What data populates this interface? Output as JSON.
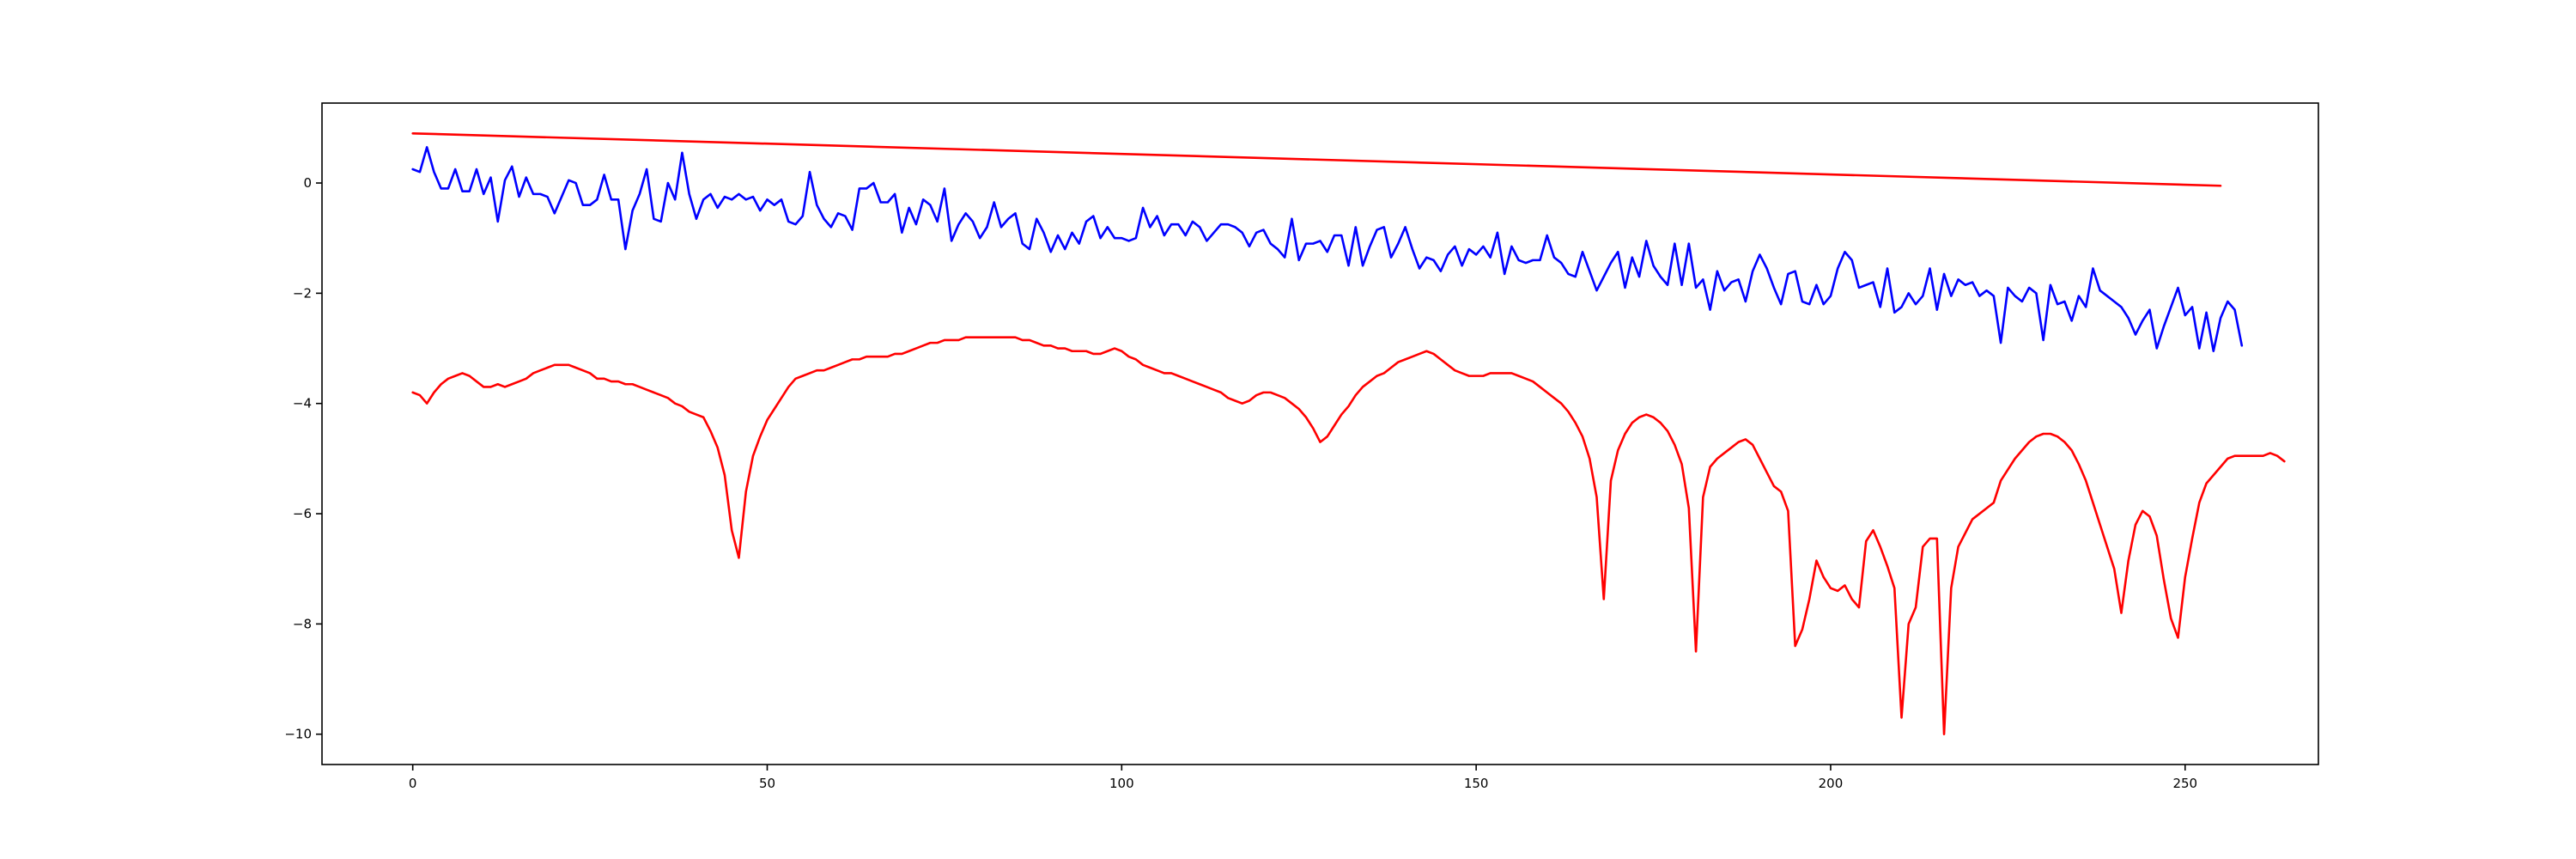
{
  "chart_data": {
    "type": "line",
    "title": "",
    "xlabel": "",
    "ylabel": "",
    "xlim": [
      -12.8,
      268.8
    ],
    "ylim": [
      -10.55,
      1.45
    ],
    "grid": false,
    "legend": "none",
    "xticks": [
      0,
      50,
      100,
      150,
      200,
      250
    ],
    "yticks": [
      0,
      -2,
      -4,
      -6,
      -8,
      -10
    ],
    "xtick_labels": [
      "0",
      "50",
      "100",
      "150",
      "200",
      "250"
    ],
    "ytick_labels": [
      "0",
      "−2",
      "−4",
      "−6",
      "−8",
      "−10"
    ],
    "series": [
      {
        "color": "#0000ff",
        "x_start": 0,
        "x_step": 1,
        "values": [
          0.25,
          0.2,
          0.65,
          0.2,
          -0.1,
          -0.1,
          0.25,
          -0.15,
          -0.15,
          0.25,
          -0.2,
          0.1,
          -0.7,
          0.05,
          0.3,
          -0.25,
          0.1,
          -0.2,
          -0.2,
          -0.25,
          -0.55,
          -0.25,
          0.05,
          0.0,
          -0.4,
          -0.4,
          -0.3,
          0.15,
          -0.3,
          -0.3,
          -1.2,
          -0.5,
          -0.2,
          0.25,
          -0.65,
          -0.7,
          0.0,
          -0.3,
          0.55,
          -0.2,
          -0.65,
          -0.3,
          -0.2,
          -0.45,
          -0.25,
          -0.3,
          -0.2,
          -0.3,
          -0.25,
          -0.5,
          -0.3,
          -0.4,
          -0.3,
          -0.7,
          -0.75,
          -0.6,
          0.2,
          -0.4,
          -0.65,
          -0.8,
          -0.55,
          -0.6,
          -0.85,
          -0.1,
          -0.1,
          0.0,
          -0.35,
          -0.35,
          -0.2,
          -0.9,
          -0.45,
          -0.75,
          -0.3,
          -0.4,
          -0.7,
          -0.1,
          -1.05,
          -0.75,
          -0.55,
          -0.7,
          -1.0,
          -0.8,
          -0.35,
          -0.8,
          -0.65,
          -0.55,
          -1.1,
          -1.2,
          -0.65,
          -0.9,
          -1.25,
          -0.95,
          -1.2,
          -0.9,
          -1.1,
          -0.7,
          -0.6,
          -1.0,
          -0.8,
          -1.0,
          -1.0,
          -1.05,
          -1.0,
          -0.45,
          -0.8,
          -0.6,
          -0.95,
          -0.75,
          -0.75,
          -0.95,
          -0.7,
          -0.8,
          -1.05,
          -0.9,
          -0.75,
          -0.75,
          -0.8,
          -0.9,
          -1.15,
          -0.9,
          -0.85,
          -1.1,
          -1.2,
          -1.35,
          -0.65,
          -1.4,
          -1.1,
          -1.1,
          -1.05,
          -1.25,
          -0.95,
          -0.95,
          -1.5,
          -0.8,
          -1.5,
          -1.15,
          -0.85,
          -0.8,
          -1.35,
          -1.1,
          -0.8,
          -1.2,
          -1.55,
          -1.35,
          -1.4,
          -1.6,
          -1.3,
          -1.15,
          -1.5,
          -1.2,
          -1.3,
          -1.15,
          -1.35,
          -0.9,
          -1.65,
          -1.15,
          -1.4,
          -1.45,
          -1.4,
          -1.4,
          -0.95,
          -1.35,
          -1.45,
          -1.65,
          -1.7,
          -1.25,
          -1.6,
          -1.95,
          -1.7,
          -1.45,
          -1.25,
          -1.9,
          -1.35,
          -1.7,
          -1.05,
          -1.5,
          -1.7,
          -1.85,
          -1.1,
          -1.85,
          -1.1,
          -1.9,
          -1.75,
          -2.3,
          -1.6,
          -1.95,
          -1.8,
          -1.75,
          -2.15,
          -1.6,
          -1.3,
          -1.55,
          -1.9,
          -2.2,
          -1.65,
          -1.6,
          -2.15,
          -2.2,
          -1.85,
          -2.2,
          -2.05,
          -1.55,
          -1.25,
          -1.4,
          -1.9,
          -1.85,
          -1.8,
          -2.25,
          -1.55,
          -2.35,
          -2.25,
          -2.0,
          -2.2,
          -2.05,
          -1.55,
          -2.3,
          -1.65,
          -2.05,
          -1.75,
          -1.85,
          -1.8,
          -2.05,
          -1.95,
          -2.05,
          -2.9,
          -1.9,
          -2.05,
          -2.15,
          -1.9,
          -2.0,
          -2.85,
          -1.85,
          -2.2,
          -2.15,
          -2.5,
          -2.05,
          -2.25,
          -1.55,
          -1.95,
          -2.05,
          -2.15,
          -2.25,
          -2.45,
          -2.75,
          -2.5,
          -2.3,
          -3.0,
          -2.6,
          -2.25,
          -1.9,
          -2.4,
          -2.25,
          -3.0,
          -2.35,
          -3.05,
          -2.45,
          -2.15,
          -2.3,
          -2.95
        ]
      },
      {
        "color": "#ff0000",
        "x_start": 0,
        "x_step": 1,
        "values": [
          -3.8,
          -3.85,
          -4.0,
          -3.8,
          -3.65,
          -3.55,
          -3.5,
          -3.45,
          -3.5,
          -3.6,
          -3.7,
          -3.7,
          -3.65,
          -3.7,
          -3.65,
          -3.6,
          -3.55,
          -3.45,
          -3.4,
          -3.35,
          -3.3,
          -3.3,
          -3.3,
          -3.35,
          -3.4,
          -3.45,
          -3.55,
          -3.55,
          -3.6,
          -3.6,
          -3.65,
          -3.65,
          -3.7,
          -3.75,
          -3.8,
          -3.85,
          -3.9,
          -4.0,
          -4.05,
          -4.15,
          -4.2,
          -4.25,
          -4.5,
          -4.8,
          -5.3,
          -6.3,
          -6.8,
          -5.6,
          -4.95,
          -4.6,
          -4.3,
          -4.1,
          -3.9,
          -3.7,
          -3.55,
          -3.5,
          -3.45,
          -3.4,
          -3.4,
          -3.35,
          -3.3,
          -3.25,
          -3.2,
          -3.2,
          -3.15,
          -3.15,
          -3.15,
          -3.15,
          -3.1,
          -3.1,
          -3.05,
          -3.0,
          -2.95,
          -2.9,
          -2.9,
          -2.85,
          -2.85,
          -2.85,
          -2.8,
          -2.8,
          -2.8,
          -2.8,
          -2.8,
          -2.8,
          -2.8,
          -2.8,
          -2.85,
          -2.85,
          -2.9,
          -2.95,
          -2.95,
          -3.0,
          -3.0,
          -3.05,
          -3.05,
          -3.05,
          -3.1,
          -3.1,
          -3.05,
          -3.0,
          -3.05,
          -3.15,
          -3.2,
          -3.3,
          -3.35,
          -3.4,
          -3.45,
          -3.45,
          -3.5,
          -3.55,
          -3.6,
          -3.65,
          -3.7,
          -3.75,
          -3.8,
          -3.9,
          -3.95,
          -4.0,
          -3.95,
          -3.85,
          -3.8,
          -3.8,
          -3.85,
          -3.9,
          -4.0,
          -4.1,
          -4.25,
          -4.45,
          -4.7,
          -4.6,
          -4.4,
          -4.2,
          -4.05,
          -3.85,
          -3.7,
          -3.6,
          -3.5,
          -3.45,
          -3.35,
          -3.25,
          -3.2,
          -3.15,
          -3.1,
          -3.05,
          -3.1,
          -3.2,
          -3.3,
          -3.4,
          -3.45,
          -3.5,
          -3.5,
          -3.5,
          -3.45,
          -3.45,
          -3.45,
          -3.45,
          -3.5,
          -3.55,
          -3.6,
          -3.7,
          -3.8,
          -3.9,
          -4.0,
          -4.15,
          -4.35,
          -4.6,
          -5.0,
          -5.7,
          -7.55,
          -5.4,
          -4.85,
          -4.55,
          -4.35,
          -4.25,
          -4.2,
          -4.25,
          -4.35,
          -4.5,
          -4.75,
          -5.1,
          -5.9,
          -8.5,
          -5.7,
          -5.15,
          -5.0,
          -4.9,
          -4.8,
          -4.7,
          -4.65,
          -4.75,
          -5.0,
          -5.25,
          -5.5,
          -5.6,
          -5.95,
          -8.4,
          -8.1,
          -7.55,
          -6.85,
          -7.15,
          -7.35,
          -7.4,
          -7.3,
          -7.55,
          -7.7,
          -6.5,
          -6.3,
          -6.6,
          -6.95,
          -7.35,
          -9.7,
          -8.0,
          -7.7,
          -6.6,
          -6.45,
          -6.45,
          -10.0,
          -7.35,
          -6.6,
          -6.35,
          -6.1,
          -6.0,
          -5.9,
          -5.8,
          -5.4,
          -5.2,
          -5.0,
          -4.85,
          -4.7,
          -4.6,
          -4.55,
          -4.55,
          -4.6,
          -4.7,
          -4.85,
          -5.1,
          -5.4,
          -5.8,
          -6.2,
          -6.6,
          -7.0,
          -7.8,
          -6.85,
          -6.2,
          -5.95,
          -6.05,
          -6.4,
          -7.2,
          -7.9,
          -8.25,
          -7.15,
          -6.45,
          -5.8,
          -5.45,
          -5.3,
          -5.15,
          -5.0,
          -4.95,
          -4.95,
          -4.95,
          -4.95,
          -4.95,
          -4.9,
          -4.95,
          -5.05
        ]
      },
      {
        "color": "#ff0000",
        "x_start": 0,
        "x_step": 255,
        "values": [
          0.9,
          -0.05
        ]
      }
    ]
  }
}
